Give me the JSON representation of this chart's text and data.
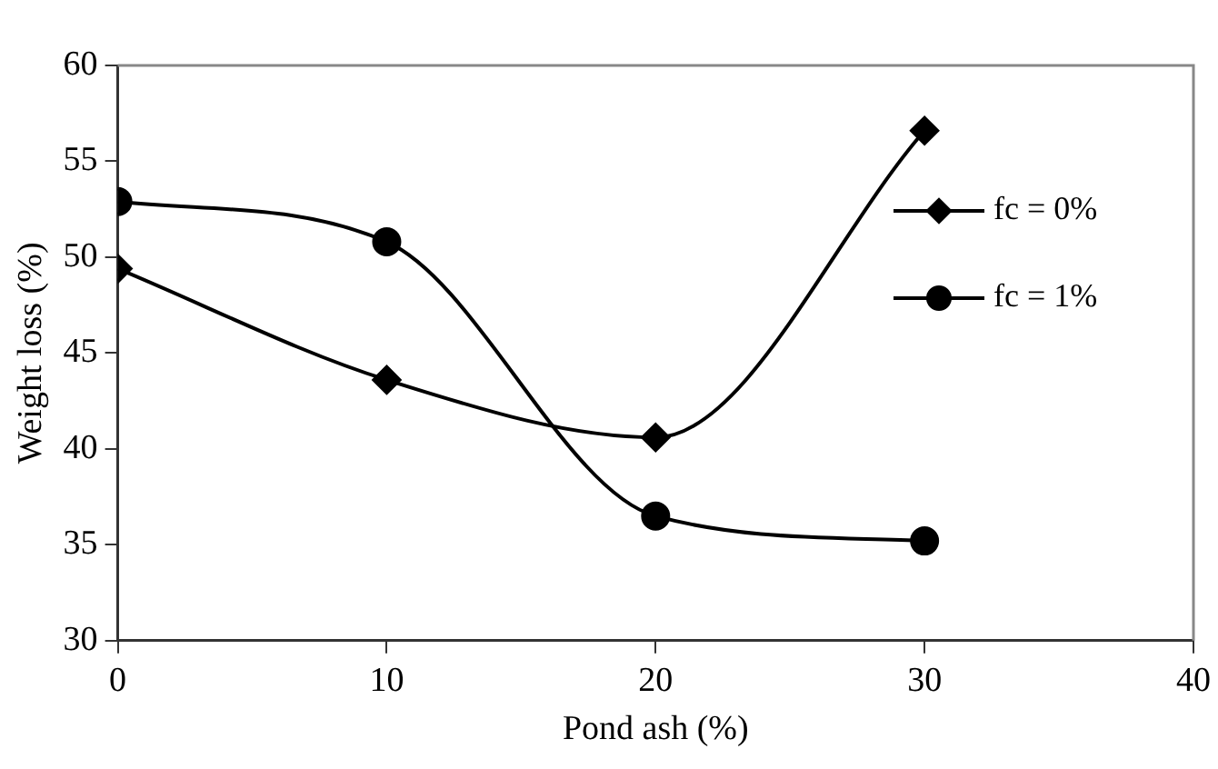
{
  "chart_data": {
    "type": "line",
    "xlabel": "Pond ash (%)",
    "ylabel": "Weight loss (%)",
    "x": [
      0,
      10,
      20,
      30
    ],
    "series": [
      {
        "name": "fc = 0%",
        "color": "#000000",
        "marker": "diamond",
        "values": [
          49.4,
          43.6,
          40.6,
          56.6
        ]
      },
      {
        "name": "fc = 1%",
        "color": "#000000",
        "marker": "circle",
        "values": [
          52.9,
          50.8,
          36.5,
          35.2
        ]
      }
    ],
    "xlim": [
      0,
      40
    ],
    "xticks": [
      0,
      10,
      20,
      30,
      40
    ],
    "ylim": [
      30,
      60
    ],
    "yticks": [
      30,
      35,
      40,
      45,
      50,
      55,
      60
    ],
    "grid": false,
    "legend": "right",
    "line_style": "solid"
  }
}
